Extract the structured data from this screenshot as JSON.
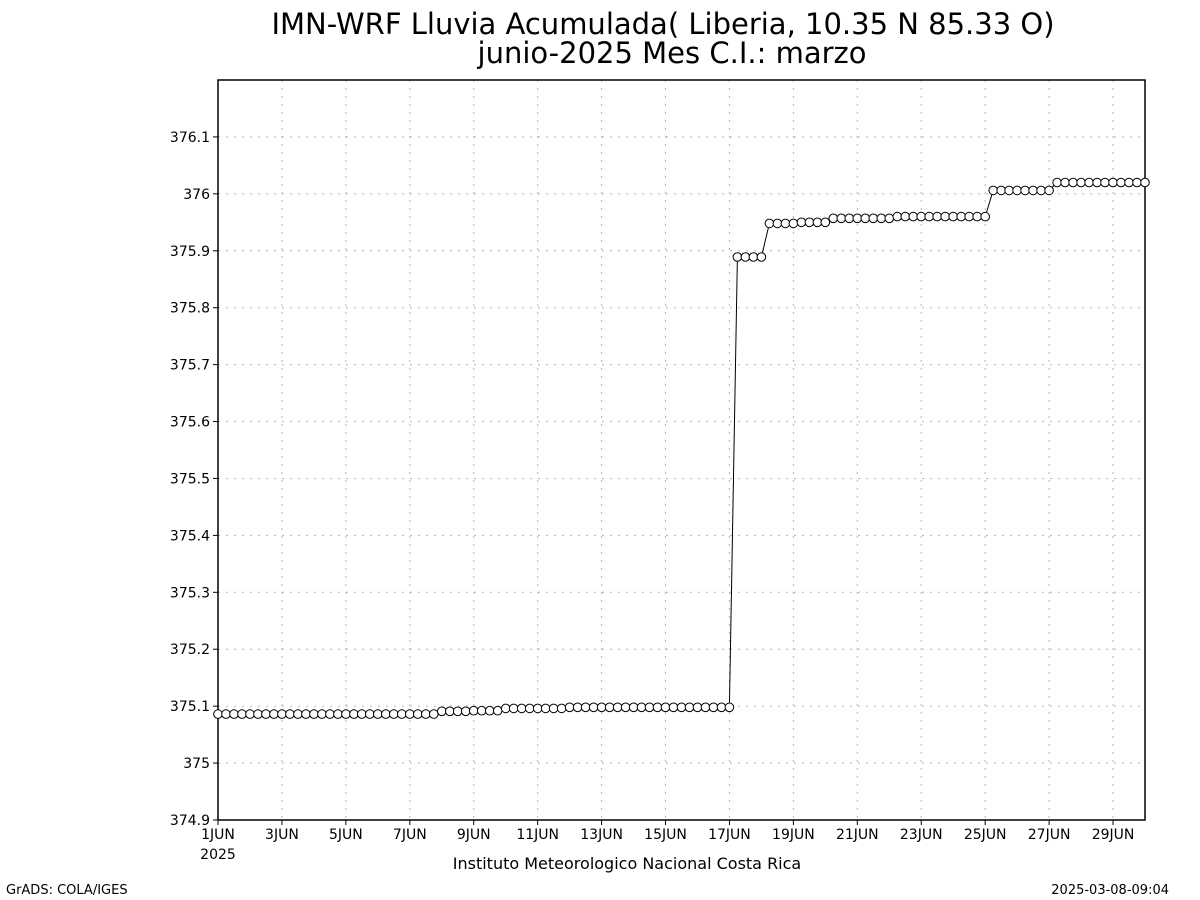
{
  "chart_data": {
    "type": "line",
    "title": "IMN-WRF  Lluvia Acumulada( Liberia, 10.35  N 85.33  O)",
    "subtitle": "junio-2025 Mes C.I.: marzo",
    "ylim": [
      374.9,
      376.2
    ],
    "xlim": [
      1,
      30
    ],
    "yticks": [
      "374.9",
      "375",
      "375.1",
      "375.2",
      "375.3",
      "375.4",
      "375.5",
      "375.6",
      "375.7",
      "375.8",
      "375.9",
      "376",
      "376.1"
    ],
    "xticks": [
      {
        "day": 1,
        "label": "1JUN"
      },
      {
        "day": 3,
        "label": "3JUN"
      },
      {
        "day": 5,
        "label": "5JUN"
      },
      {
        "day": 7,
        "label": "7JUN"
      },
      {
        "day": 9,
        "label": "9JUN"
      },
      {
        "day": 11,
        "label": "11JUN"
      },
      {
        "day": 13,
        "label": "13JUN"
      },
      {
        "day": 15,
        "label": "15JUN"
      },
      {
        "day": 17,
        "label": "17JUN"
      },
      {
        "day": 19,
        "label": "19JUN"
      },
      {
        "day": 21,
        "label": "21JUN"
      },
      {
        "day": 23,
        "label": "23JUN"
      },
      {
        "day": 25,
        "label": "25JUN"
      },
      {
        "day": 27,
        "label": "27JUN"
      },
      {
        "day": 29,
        "label": "29JUN"
      }
    ],
    "year_label": "2025",
    "grid": true,
    "marker": "open-circle",
    "x_step_days": 0.25,
    "values": [
      375.086,
      375.086,
      375.086,
      375.086,
      375.086,
      375.086,
      375.086,
      375.086,
      375.086,
      375.086,
      375.086,
      375.086,
      375.086,
      375.086,
      375.086,
      375.086,
      375.086,
      375.086,
      375.086,
      375.086,
      375.086,
      375.086,
      375.086,
      375.086,
      375.086,
      375.086,
      375.086,
      375.086,
      375.091,
      375.091,
      375.091,
      375.091,
      375.092,
      375.092,
      375.092,
      375.092,
      375.096,
      375.096,
      375.096,
      375.096,
      375.096,
      375.096,
      375.096,
      375.096,
      375.098,
      375.098,
      375.098,
      375.098,
      375.098,
      375.098,
      375.098,
      375.098,
      375.098,
      375.098,
      375.098,
      375.098,
      375.098,
      375.098,
      375.098,
      375.098,
      375.098,
      375.098,
      375.098,
      375.098,
      375.098,
      375.889,
      375.889,
      375.889,
      375.889,
      375.948,
      375.948,
      375.948,
      375.948,
      375.95,
      375.95,
      375.95,
      375.95,
      375.957,
      375.957,
      375.957,
      375.957,
      375.957,
      375.957,
      375.957,
      375.957,
      375.96,
      375.96,
      375.96,
      375.96,
      375.96,
      375.96,
      375.96,
      375.96,
      375.96,
      375.96,
      375.96,
      375.96,
      376.006,
      376.006,
      376.006,
      376.006,
      376.006,
      376.006,
      376.006,
      376.006,
      376.02,
      376.02,
      376.02,
      376.02,
      376.02,
      376.02,
      376.02,
      376.02,
      376.02,
      376.02,
      376.02,
      376.02
    ]
  },
  "footer": {
    "institution": "Instituto Meteorologico Nacional Costa Rica",
    "credit": "GrADS: COLA/IGES",
    "timestamp": "2025-03-08-09:04"
  }
}
